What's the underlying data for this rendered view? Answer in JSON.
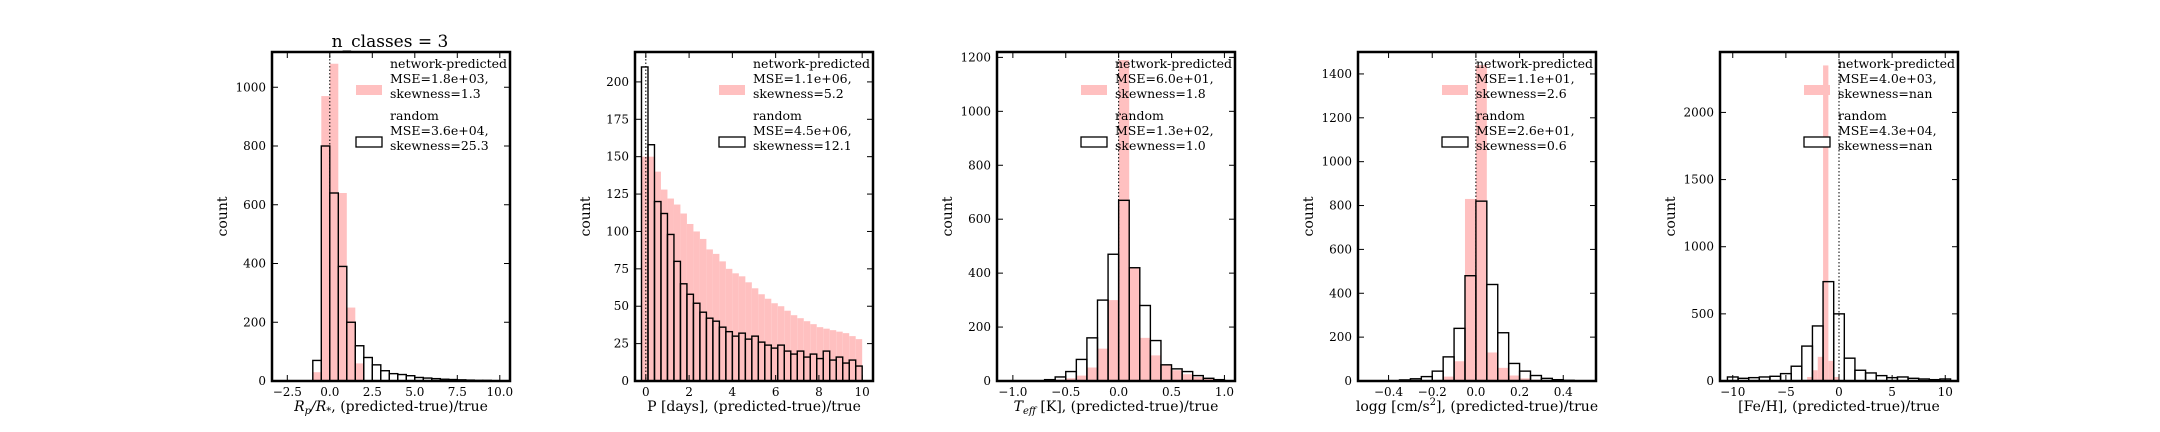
{
  "figure": {
    "suptitle": "n_classes = 3"
  },
  "chart_data": [
    {
      "type": "histogram",
      "title": "n_classes = 3",
      "xlabel": "R_p/R_*, (predicted-true)/true",
      "ylabel": "count",
      "xlim": [
        -3.4,
        10.6
      ],
      "ylim": [
        0,
        1120
      ],
      "xticks": [
        -2.5,
        0.0,
        2.5,
        5.0,
        7.5,
        10.0
      ],
      "xtick_labels": [
        "−2.5",
        "0.0",
        "2.5",
        "5.0",
        "7.5",
        "10.0"
      ],
      "yticks": [
        0,
        200,
        400,
        600,
        800,
        1000
      ],
      "vline": 0,
      "series": [
        {
          "name": "network-predicted",
          "legend_lines": [
            "network-predicted",
            "MSE=1.8e+03,",
            "skewness=1.3"
          ],
          "style": "filled",
          "color": "#ffc0c0",
          "bin_edges": [
            -1.0,
            -0.5,
            0.0,
            0.5,
            1.0,
            1.5,
            2.0
          ],
          "counts": [
            30,
            970,
            1080,
            640,
            250,
            60
          ]
        },
        {
          "name": "random",
          "legend_lines": [
            "random",
            "MSE=3.6e+04,",
            "skewness=25.3"
          ],
          "style": "outline",
          "color": "#000000",
          "bin_edges": [
            -1.0,
            -0.5,
            0.0,
            0.5,
            1.0,
            1.5,
            2.0,
            2.5,
            3.0,
            3.5,
            4.0,
            4.5,
            5.0,
            5.5,
            6.0,
            6.5,
            7.0,
            7.5,
            8.0,
            8.5,
            9.0,
            9.5
          ],
          "counts": [
            70,
            800,
            640,
            390,
            200,
            120,
            80,
            55,
            35,
            25,
            22,
            18,
            12,
            10,
            8,
            6,
            5,
            4,
            3,
            2,
            2
          ]
        }
      ]
    },
    {
      "type": "histogram",
      "title": "",
      "xlabel": "P [days], (predicted-true)/true",
      "ylabel": "count",
      "xlim": [
        -0.5,
        10.5
      ],
      "ylim": [
        0,
        220
      ],
      "xticks": [
        0,
        2,
        4,
        6,
        8,
        10
      ],
      "xtick_labels": [
        "0",
        "2",
        "4",
        "6",
        "8",
        "10"
      ],
      "yticks": [
        0,
        25,
        50,
        75,
        100,
        125,
        150,
        175,
        200
      ],
      "vline": 0,
      "series": [
        {
          "name": "network-predicted",
          "legend_lines": [
            "network-predicted",
            "MSE=1.1e+06,",
            "skewness=5.2"
          ],
          "style": "filled",
          "color": "#ffc0c0",
          "bin_edges": [
            -0.2,
            0.1,
            0.4,
            0.7,
            1.0,
            1.3,
            1.6,
            1.9,
            2.2,
            2.5,
            2.8,
            3.1,
            3.4,
            3.7,
            4.0,
            4.3,
            4.6,
            4.9,
            5.2,
            5.5,
            5.8,
            6.1,
            6.4,
            6.7,
            7.0,
            7.3,
            7.6,
            7.9,
            8.2,
            8.5,
            8.8,
            9.1,
            9.4,
            9.7,
            10.0
          ],
          "counts": [
            150,
            150,
            140,
            128,
            122,
            118,
            112,
            105,
            100,
            95,
            88,
            85,
            80,
            75,
            72,
            70,
            66,
            62,
            58,
            55,
            52,
            50,
            47,
            44,
            42,
            40,
            38,
            36,
            35,
            34,
            33,
            32,
            30,
            28
          ]
        },
        {
          "name": "random",
          "legend_lines": [
            "random",
            "MSE=4.5e+06,",
            "skewness=12.1"
          ],
          "style": "outline",
          "color": "#000000",
          "bin_edges": [
            -0.2,
            0.1,
            0.4,
            0.7,
            1.0,
            1.3,
            1.6,
            1.9,
            2.2,
            2.5,
            2.8,
            3.1,
            3.4,
            3.7,
            4.0,
            4.3,
            4.6,
            4.9,
            5.2,
            5.5,
            5.8,
            6.1,
            6.4,
            6.7,
            7.0,
            7.3,
            7.6,
            7.9,
            8.2,
            8.5,
            8.8,
            9.1,
            9.4,
            9.7,
            10.0
          ],
          "counts": [
            210,
            158,
            120,
            112,
            98,
            80,
            65,
            58,
            52,
            46,
            42,
            40,
            36,
            33,
            30,
            32,
            28,
            30,
            26,
            24,
            22,
            24,
            20,
            18,
            20,
            16,
            18,
            15,
            20,
            14,
            16,
            12,
            14,
            10
          ]
        }
      ]
    },
    {
      "type": "histogram",
      "title": "",
      "xlabel": "T_eff [K], (predicted-true)/true",
      "ylabel": "count",
      "xlim": [
        -1.15,
        1.1
      ],
      "ylim": [
        0,
        1220
      ],
      "xticks": [
        -1.0,
        -0.5,
        0.0,
        0.5,
        1.0
      ],
      "xtick_labels": [
        "−1.0",
        "−0.5",
        "0.0",
        "0.5",
        "1.0"
      ],
      "yticks": [
        0,
        200,
        400,
        600,
        800,
        1000,
        1200
      ],
      "vline": 0,
      "series": [
        {
          "name": "network-predicted",
          "legend_lines": [
            "network-predicted",
            "MSE=6.0e+01,",
            "skewness=1.8"
          ],
          "style": "filled",
          "color": "#ffc0c0",
          "bin_edges": [
            -0.6,
            -0.5,
            -0.4,
            -0.3,
            -0.2,
            -0.1,
            0.0,
            0.1,
            0.2,
            0.3,
            0.4,
            0.5,
            0.6,
            0.7,
            0.8,
            0.9
          ],
          "counts": [
            5,
            10,
            20,
            50,
            120,
            300,
            1190,
            420,
            160,
            95,
            60,
            40,
            25,
            15,
            8
          ]
        },
        {
          "name": "random",
          "legend_lines": [
            "random",
            "MSE=1.3e+02,",
            "skewness=1.0"
          ],
          "style": "outline",
          "color": "#000000",
          "bin_edges": [
            -0.7,
            -0.6,
            -0.5,
            -0.4,
            -0.3,
            -0.2,
            -0.1,
            0.0,
            0.1,
            0.2,
            0.3,
            0.4,
            0.5,
            0.6,
            0.7,
            0.8,
            0.9,
            1.0
          ],
          "counts": [
            5,
            15,
            35,
            80,
            160,
            300,
            470,
            670,
            420,
            280,
            150,
            60,
            45,
            35,
            20,
            10,
            5
          ]
        }
      ]
    },
    {
      "type": "histogram",
      "title": "",
      "xlabel": "logg [cm/s^2], (predicted-true)/true",
      "ylabel": "count",
      "xlim": [
        -0.54,
        0.55
      ],
      "ylim": [
        0,
        1500
      ],
      "xticks": [
        -0.4,
        -0.2,
        0.0,
        0.2,
        0.4
      ],
      "xtick_labels": [
        "−0.4",
        "−0.2",
        "0.0",
        "0.2",
        "0.4"
      ],
      "yticks": [
        0,
        200,
        400,
        600,
        800,
        1000,
        1200,
        1400
      ],
      "vline": 0,
      "series": [
        {
          "name": "network-predicted",
          "legend_lines": [
            "network-predicted",
            "MSE=1.1e+01,",
            "skewness=2.6"
          ],
          "style": "filled",
          "color": "#ffc0c0",
          "bin_edges": [
            -0.2,
            -0.15,
            -0.1,
            -0.05,
            0.0,
            0.05,
            0.1,
            0.15,
            0.2,
            0.25,
            0.3,
            0.35,
            0.4
          ],
          "counts": [
            5,
            20,
            90,
            830,
            1440,
            130,
            60,
            25,
            12,
            6,
            4,
            2
          ]
        },
        {
          "name": "random",
          "legend_lines": [
            "random",
            "MSE=2.6e+01,",
            "skewness=0.6"
          ],
          "style": "outline",
          "color": "#000000",
          "bin_edges": [
            -0.35,
            -0.3,
            -0.25,
            -0.2,
            -0.15,
            -0.1,
            -0.05,
            0.0,
            0.05,
            0.1,
            0.15,
            0.2,
            0.25,
            0.3,
            0.35,
            0.4,
            0.45
          ],
          "counts": [
            5,
            10,
            20,
            45,
            110,
            240,
            480,
            820,
            440,
            220,
            80,
            45,
            25,
            12,
            6,
            3
          ]
        }
      ]
    },
    {
      "type": "histogram",
      "title": "",
      "xlabel": "[Fe/H], (predicted-true)/true",
      "ylabel": "count",
      "xlim": [
        -11.2,
        11.2
      ],
      "ylim": [
        0,
        2450
      ],
      "xticks": [
        -10,
        -5,
        0,
        5,
        10
      ],
      "xtick_labels": [
        "−10",
        "−5",
        "0",
        "5",
        "10"
      ],
      "yticks": [
        0,
        500,
        1000,
        1500,
        2000
      ],
      "vline": 0,
      "series": [
        {
          "name": "network-predicted",
          "legend_lines": [
            "network-predicted",
            "MSE=4.0e+03,",
            "skewness=nan"
          ],
          "style": "filled",
          "color": "#ffc0c0",
          "bin_edges": [
            -3.0,
            -2.5,
            -2.0,
            -1.5,
            -1.0,
            -0.5,
            0.0
          ],
          "counts": [
            30,
            80,
            180,
            2350,
            150,
            30
          ]
        },
        {
          "name": "random",
          "legend_lines": [
            "random",
            "MSE=4.3e+04,",
            "skewness=nan"
          ],
          "style": "outline",
          "color": "#000000",
          "bin_edges": [
            -10.5,
            -9.5,
            -8.5,
            -7.5,
            -6.5,
            -5.5,
            -4.5,
            -3.5,
            -2.5,
            -1.5,
            -0.5,
            0.5,
            1.5,
            2.5,
            3.5,
            4.5,
            5.5,
            6.5,
            7.5,
            8.5,
            9.5,
            10.5
          ],
          "counts": [
            30,
            20,
            25,
            30,
            35,
            55,
            110,
            260,
            410,
            740,
            500,
            170,
            80,
            60,
            40,
            25,
            30,
            20,
            15,
            10,
            15
          ]
        }
      ]
    }
  ]
}
